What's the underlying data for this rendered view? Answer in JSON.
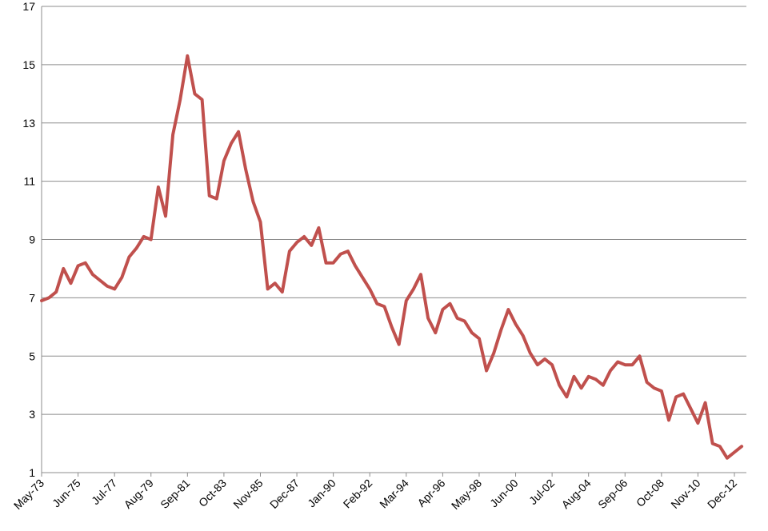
{
  "chart_data": {
    "type": "line",
    "categories": [
      "May-73",
      null,
      null,
      null,
      null,
      "Jun-75",
      null,
      null,
      null,
      null,
      "Jul-77",
      null,
      null,
      null,
      null,
      "Aug-79",
      null,
      null,
      null,
      null,
      "Sep-81",
      null,
      null,
      null,
      null,
      "Oct-83",
      null,
      null,
      null,
      null,
      "Nov-85",
      null,
      null,
      null,
      null,
      "Dec-87",
      null,
      null,
      null,
      null,
      "Jan-90",
      null,
      null,
      null,
      null,
      "Feb-92",
      null,
      null,
      null,
      null,
      "Mar-94",
      null,
      null,
      null,
      null,
      "Apr-96",
      null,
      null,
      null,
      null,
      "May-98",
      null,
      null,
      null,
      null,
      "Jun-00",
      null,
      null,
      null,
      null,
      "Jul-02",
      null,
      null,
      null,
      null,
      "Aug-04",
      null,
      null,
      null,
      null,
      "Sep-06",
      null,
      null,
      null,
      null,
      "Oct-08",
      null,
      null,
      null,
      null,
      "Nov-10",
      null,
      null,
      null,
      null,
      "Dec-12",
      null
    ],
    "series": [
      {
        "color": "#c0504d",
        "values": [
          6.9,
          7.0,
          7.2,
          8.0,
          7.5,
          8.1,
          8.2,
          7.8,
          7.6,
          7.4,
          7.3,
          7.7,
          8.4,
          8.7,
          9.1,
          9.0,
          10.8,
          9.8,
          12.6,
          13.8,
          15.3,
          14.0,
          13.8,
          10.5,
          10.4,
          11.7,
          12.3,
          12.7,
          11.4,
          10.3,
          9.6,
          7.3,
          7.5,
          7.2,
          8.6,
          8.9,
          9.1,
          8.8,
          9.4,
          8.2,
          8.2,
          8.5,
          8.6,
          8.1,
          7.7,
          7.3,
          6.8,
          6.7,
          6.0,
          5.4,
          6.9,
          7.3,
          7.8,
          6.3,
          5.8,
          6.6,
          6.8,
          6.3,
          6.2,
          5.8,
          5.6,
          4.5,
          5.1,
          5.9,
          6.6,
          6.1,
          5.7,
          5.1,
          4.7,
          4.9,
          4.7,
          4.0,
          3.6,
          4.3,
          3.9,
          4.3,
          4.2,
          4.0,
          4.5,
          4.8,
          4.7,
          4.7,
          5.0,
          4.1,
          3.9,
          3.8,
          2.8,
          3.6,
          3.7,
          3.2,
          2.7,
          3.4,
          2.0,
          1.9,
          1.5,
          1.7,
          1.9
        ]
      }
    ],
    "ylim": [
      1,
      17
    ],
    "yticks": [
      1,
      3,
      5,
      7,
      9,
      11,
      13,
      15,
      17
    ],
    "grid": true
  }
}
